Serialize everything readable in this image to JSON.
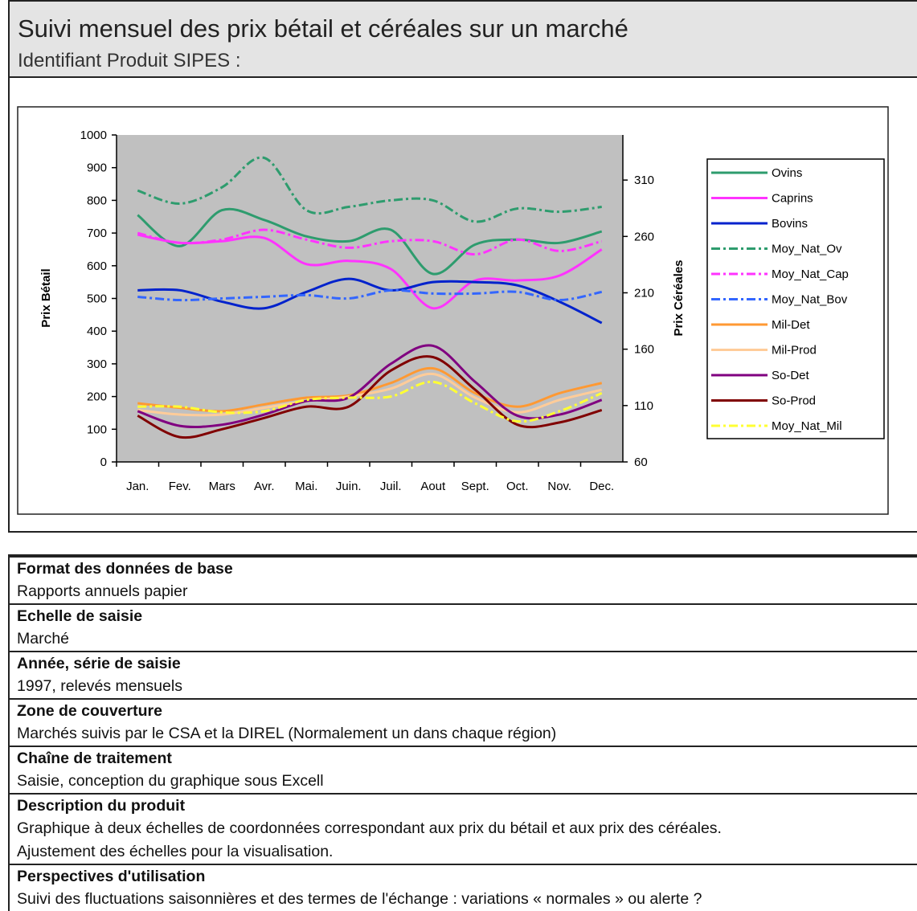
{
  "header": {
    "title": "Suivi mensuel des prix bétail et céréales sur un marché",
    "subtitle": "Identifiant Produit SIPES :"
  },
  "chart_data": {
    "type": "line",
    "categories": [
      "Jan.",
      "Fev.",
      "Mars",
      "Avr.",
      "Mai.",
      "Juin.",
      "Juil.",
      "Aout",
      "Sept.",
      "Oct.",
      "Nov.",
      "Dec."
    ],
    "ylabel": "Prix Bétail",
    "y2label": "Prix Céréales",
    "ylim": [
      0,
      1000
    ],
    "yticks": [
      0,
      100,
      200,
      300,
      400,
      500,
      600,
      700,
      800,
      900,
      1000
    ],
    "y2lim": [
      60,
      350
    ],
    "y2ticks": [
      60,
      110,
      160,
      210,
      260,
      310
    ],
    "plot_background": "#c0c0c0",
    "smooth": true,
    "legend": "right",
    "series": [
      {
        "name": "Ovins",
        "color": "#2e9c6e",
        "style": "solid",
        "values": [
          755,
          660,
          770,
          740,
          690,
          675,
          710,
          575,
          665,
          680,
          670,
          705
        ]
      },
      {
        "name": "Caprins",
        "color": "#ff33ff",
        "style": "solid",
        "values": [
          695,
          670,
          675,
          685,
          605,
          615,
          590,
          470,
          555,
          555,
          570,
          650
        ]
      },
      {
        "name": "Bovins",
        "color": "#0022cc",
        "style": "solid",
        "values": [
          525,
          525,
          490,
          470,
          520,
          560,
          525,
          550,
          550,
          540,
          490,
          425
        ]
      },
      {
        "name": "Moy_Nat_Ov",
        "color": "#2e9c6e",
        "style": "dashdot",
        "values": [
          830,
          790,
          840,
          930,
          770,
          780,
          800,
          800,
          735,
          775,
          765,
          780
        ]
      },
      {
        "name": "Moy_Nat_Cap",
        "color": "#ff33ff",
        "style": "dashdot",
        "values": [
          700,
          670,
          680,
          710,
          680,
          655,
          675,
          675,
          635,
          680,
          645,
          675
        ]
      },
      {
        "name": "Moy_Nat_Bov",
        "color": "#3366ff",
        "style": "dashdot",
        "values": [
          505,
          495,
          500,
          505,
          510,
          500,
          525,
          515,
          515,
          520,
          495,
          520
        ]
      },
      {
        "name": "Mil-Det",
        "color": "#ff9933",
        "style": "solid",
        "axis": "y2",
        "values": [
          112,
          108,
          105,
          111,
          117,
          119,
          130,
          143,
          121,
          109,
          121,
          130
        ]
      },
      {
        "name": "Mil-Prod",
        "color": "#ffcc99",
        "style": "solid",
        "axis": "y2",
        "values": [
          106,
          102,
          102,
          108,
          114,
          118,
          125,
          138,
          117,
          104,
          115,
          124
        ]
      },
      {
        "name": "So-Det",
        "color": "#800080",
        "style": "solid",
        "axis": "y2",
        "values": [
          105,
          92,
          93,
          102,
          114,
          117,
          147,
          163,
          131,
          101,
          102,
          115
        ]
      },
      {
        "name": "So-Prod",
        "color": "#800000",
        "style": "solid",
        "axis": "y2",
        "values": [
          101,
          82,
          89,
          99,
          109,
          109,
          141,
          153,
          124,
          93,
          95,
          106
        ]
      },
      {
        "name": "Moy_Nat_Mil",
        "color": "#ffff33",
        "style": "dashdot",
        "axis": "y2",
        "values": [
          109,
          109,
          104,
          105,
          115,
          117,
          118,
          131,
          112,
          96,
          105,
          121
        ]
      }
    ]
  },
  "sections": [
    {
      "label": "Format des données de base",
      "lines": [
        "Rapports annuels papier"
      ]
    },
    {
      "label": "Echelle de saisie",
      "lines": [
        "Marché"
      ]
    },
    {
      "label": "Année, série de saisie",
      "lines": [
        "1997, relevés mensuels"
      ]
    },
    {
      "label": "Zone de couverture",
      "lines": [
        "Marchés suivis par le CSA et la DIREL (Normalement un dans chaque région)"
      ]
    },
    {
      "label": "Chaîne de traitement",
      "lines": [
        "Saisie, conception du graphique sous Excell"
      ]
    },
    {
      "label": "Description du produit",
      "lines": [
        "Graphique à deux échelles de coordonnées correspondant aux prix du bétail et aux prix des céréales.",
        "Ajustement des échelles pour la visualisation."
      ]
    },
    {
      "label": "Perspectives d'utilisation",
      "lines": [
        "Suivi des fluctuations saisonnières et des termes de l'échange : variations « normales » ou alerte ?"
      ]
    }
  ]
}
